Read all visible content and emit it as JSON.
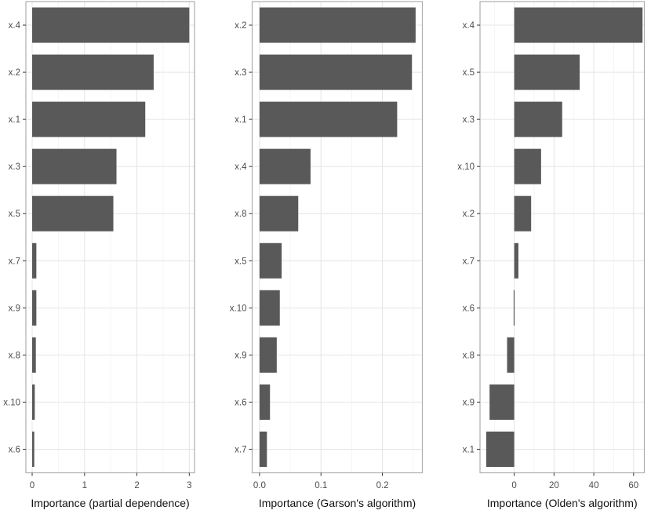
{
  "figure": {
    "background": "#ffffff"
  },
  "style": {
    "bar_color": "#595959",
    "panel_background": "#ffffff",
    "panel_border": "#aeaeae",
    "grid_major": "#e4e4e4",
    "grid_minor": "#f1f1f1",
    "tick_mark_color": "#333333",
    "axis_text_color": "#4d4d4d",
    "axis_title_color": "#111111"
  },
  "chart_data": [
    {
      "id": "partial-dependence",
      "type": "bar",
      "orientation": "horizontal",
      "title": "",
      "xlabel": "Importance (partial dependence)",
      "ylabel": "",
      "legend": "none",
      "grid": true,
      "categories": [
        "x.4",
        "x.2",
        "x.1",
        "x.3",
        "x.5",
        "x.7",
        "x.9",
        "x.8",
        "x.10",
        "x.6"
      ],
      "values": [
        3.0,
        2.32,
        2.16,
        1.61,
        1.55,
        0.08,
        0.08,
        0.07,
        0.05,
        0.04
      ],
      "x_ticks": [
        0,
        1,
        2,
        3
      ],
      "x_tick_labels": [
        "0",
        "1",
        "2",
        "3"
      ],
      "x_minor_ticks": [
        0.5,
        1.5,
        2.5
      ],
      "xlim": [
        -0.12,
        3.1
      ]
    },
    {
      "id": "garson",
      "type": "bar",
      "orientation": "horizontal",
      "title": "",
      "xlabel": "Importance (Garson's algorithm)",
      "ylabel": "",
      "legend": "none",
      "grid": true,
      "categories": [
        "x.2",
        "x.3",
        "x.1",
        "x.4",
        "x.8",
        "x.5",
        "x.10",
        "x.9",
        "x.6",
        "x.7"
      ],
      "values": [
        0.254,
        0.248,
        0.224,
        0.083,
        0.063,
        0.036,
        0.033,
        0.028,
        0.017,
        0.012
      ],
      "x_ticks": [
        0,
        0.1,
        0.2
      ],
      "x_tick_labels": [
        "0.0",
        "0.1",
        "0.2"
      ],
      "x_minor_ticks": [
        0.05,
        0.15,
        0.25
      ],
      "xlim": [
        -0.012,
        0.265
      ]
    },
    {
      "id": "olden",
      "type": "bar",
      "orientation": "horizontal",
      "title": "",
      "xlabel": "Importance (Olden's algorithm)",
      "ylabel": "",
      "legend": "none",
      "grid": true,
      "categories": [
        "x.4",
        "x.5",
        "x.3",
        "x.10",
        "x.2",
        "x.7",
        "x.6",
        "x.8",
        "x.9",
        "x.1"
      ],
      "values": [
        64.5,
        32.9,
        24.1,
        13.5,
        8.5,
        2.1,
        -0.3,
        -3.6,
        -12.4,
        -14.1
      ],
      "x_ticks": [
        0,
        20,
        40,
        60
      ],
      "x_tick_labels": [
        "0",
        "20",
        "40",
        "60"
      ],
      "x_minor_ticks": [
        -10,
        10,
        30,
        50
      ],
      "xlim": [
        -17.2,
        65.4
      ]
    }
  ]
}
